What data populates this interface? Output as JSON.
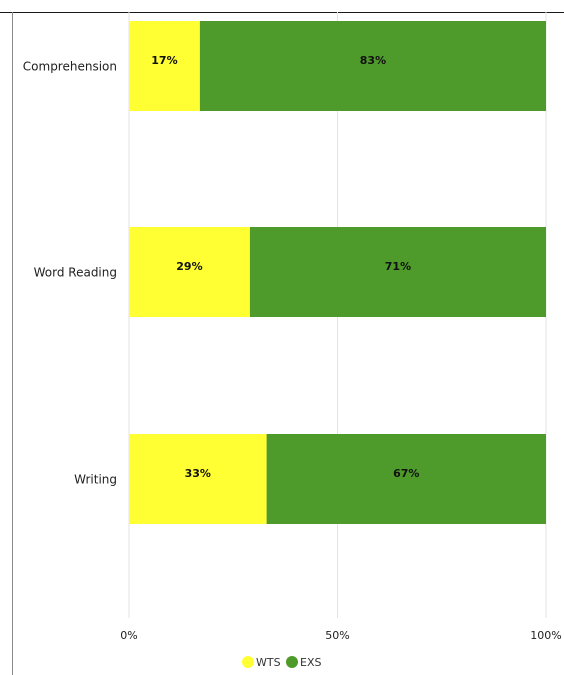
{
  "chart_data": {
    "type": "bar",
    "orientation": "horizontal",
    "stacked": true,
    "categories": [
      "Comprehension",
      "Word Reading",
      "Writing"
    ],
    "series": [
      {
        "name": "WTS",
        "values": [
          17,
          29,
          33
        ],
        "labels": [
          "17%",
          "29%",
          "33%"
        ],
        "color": "#ffff33"
      },
      {
        "name": "EXS",
        "values": [
          83,
          71,
          67
        ],
        "labels": [
          "83%",
          "71%",
          "67%"
        ],
        "color": "#4e9a2a"
      }
    ],
    "xlim": [
      0,
      100
    ],
    "xticks": [
      0,
      50,
      100
    ],
    "xtick_labels": [
      "0%",
      "50%",
      "100%"
    ],
    "grid": true,
    "legend": "bottom"
  }
}
